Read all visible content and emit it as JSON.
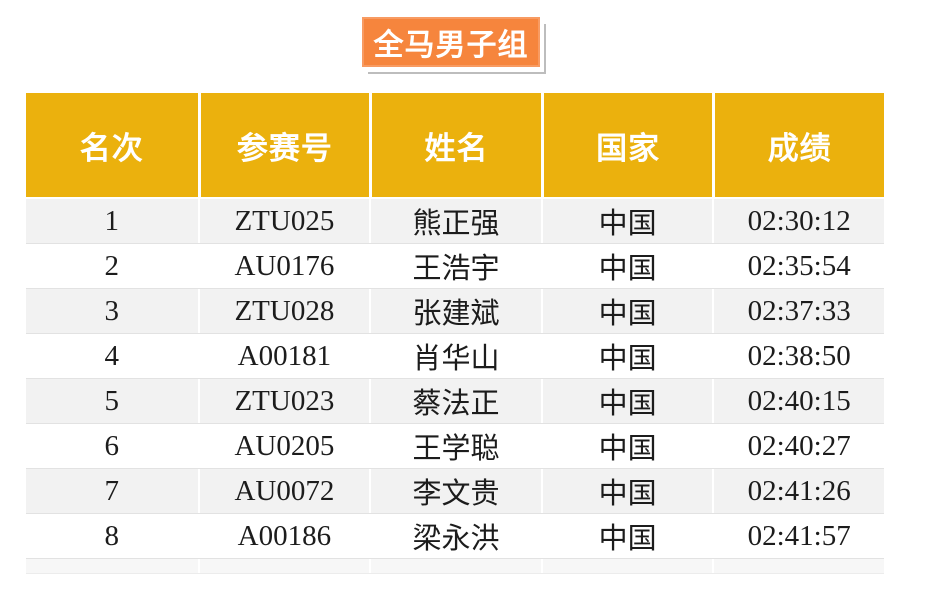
{
  "page": {
    "background": "#FFFFFF"
  },
  "title": {
    "label": "全马男子组",
    "bg_color": "#F6853D",
    "text_color": "#FFFFFF"
  },
  "table": {
    "header": {
      "bg_color": "#EBB10D",
      "text_color": "#FFFFFF",
      "col_rank": "名次",
      "col_bib": "参赛号",
      "col_name": "姓名",
      "col_country": "国家",
      "col_time": "成绩"
    },
    "zebra": {
      "odd_row_bg": "#F2F2F2",
      "even_row_bg": "#FFFFFF"
    },
    "rows": [
      {
        "rank": "1",
        "bib": "ZTU025",
        "name": "熊正强",
        "country": "中国",
        "time": "02:30:12"
      },
      {
        "rank": "2",
        "bib": "AU0176",
        "name": "王浩宇",
        "country": "中国",
        "time": "02:35:54"
      },
      {
        "rank": "3",
        "bib": "ZTU028",
        "name": "张建斌",
        "country": "中国",
        "time": "02:37:33"
      },
      {
        "rank": "4",
        "bib": "A00181",
        "name": "肖华山",
        "country": "中国",
        "time": "02:38:50"
      },
      {
        "rank": "5",
        "bib": "ZTU023",
        "name": "蔡法正",
        "country": "中国",
        "time": "02:40:15"
      },
      {
        "rank": "6",
        "bib": "AU0205",
        "name": "王学聪",
        "country": "中国",
        "time": "02:40:27"
      },
      {
        "rank": "7",
        "bib": "AU0072",
        "name": "李文贵",
        "country": "中国",
        "time": "02:41:26"
      },
      {
        "rank": "8",
        "bib": "A00186",
        "name": "梁永洪",
        "country": "中国",
        "time": "02:41:57"
      }
    ]
  }
}
